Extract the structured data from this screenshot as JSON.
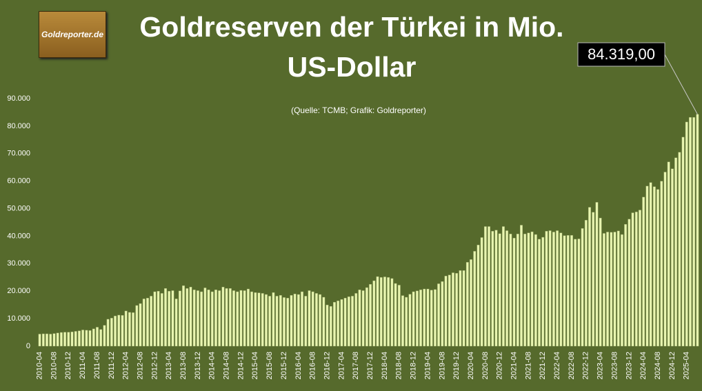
{
  "chart_data": {
    "type": "bar",
    "title": "Goldreserven der Türkei in Mio. US-Dollar",
    "logo": "Goldreporter.de",
    "source": "(Quelle: TCMB; Grafik: Goldreporter)",
    "annotation": "84.319,00",
    "color": "#e8f5b0",
    "ylim": [
      0,
      90000
    ],
    "yticks": [
      0,
      {
        "value": 10000,
        "label": "10.000"
      },
      {
        "value": 20000,
        "label": "20.000"
      },
      {
        "value": 30000,
        "label": "30.000"
      },
      {
        "value": 40000,
        "label": "40.000"
      },
      {
        "value": 50000,
        "label": "50.000"
      },
      {
        "value": 60000,
        "label": "60.000"
      },
      {
        "value": 70000,
        "label": "70.000"
      },
      {
        "value": 80000,
        "label": "80.000"
      },
      {
        "value": 90000,
        "label": "90.000"
      }
    ],
    "grid": false,
    "categories": [
      "2010-04",
      null,
      null,
      null,
      "2010-08",
      null,
      null,
      null,
      "2010-12",
      null,
      null,
      null,
      "2011-04",
      null,
      null,
      null,
      "2011-08",
      null,
      null,
      null,
      "2011-12",
      null,
      null,
      null,
      "2012-04",
      null,
      null,
      null,
      "2012-08",
      null,
      null,
      null,
      "2012-12",
      null,
      null,
      null,
      "2013-04",
      null,
      null,
      null,
      "2013-08",
      null,
      null,
      null,
      "2013-12",
      null,
      null,
      null,
      "2014-04",
      null,
      null,
      null,
      "2014-08",
      null,
      null,
      null,
      "2014-12",
      null,
      null,
      null,
      "2015-04",
      null,
      null,
      null,
      "2015-08",
      null,
      null,
      null,
      "2015-12",
      null,
      null,
      null,
      "2016-04",
      null,
      null,
      null,
      "2016-08",
      null,
      null,
      null,
      "2016-12",
      null,
      null,
      null,
      "2017-04",
      null,
      null,
      null,
      "2017-08",
      null,
      null,
      null,
      "2017-12",
      null,
      null,
      null,
      "2018-04",
      null,
      null,
      null,
      "2018-08",
      null,
      null,
      null,
      "2018-12",
      null,
      null,
      null,
      "2019-04",
      null,
      null,
      null,
      "2019-08",
      null,
      null,
      null,
      "2019-12",
      null,
      null,
      null,
      "2020-04",
      null,
      null,
      null,
      "2020-08",
      null,
      null,
      null,
      "2020-12",
      null,
      null,
      null,
      "2021-04",
      null,
      null,
      null,
      "2021-08",
      null,
      null,
      null,
      "2021-12",
      null,
      null,
      null,
      "2022-04",
      null,
      null,
      null,
      "2022-08",
      null,
      null,
      null,
      "2022-12",
      null,
      null,
      null,
      "2023-04",
      null,
      null,
      null,
      "2023-08",
      null,
      null,
      null,
      "2023-12",
      null,
      null,
      null,
      "2024-04",
      null,
      null,
      null,
      "2024-08",
      null,
      null,
      null,
      "2024-12",
      null,
      null,
      null,
      "2025-04",
      null,
      null,
      null
    ],
    "values": [
      4400,
      4500,
      4500,
      4400,
      4600,
      4800,
      5000,
      5100,
      5100,
      5200,
      5400,
      5600,
      5900,
      5800,
      5700,
      6300,
      6900,
      6100,
      7600,
      9800,
      10200,
      11000,
      11300,
      11200,
      12800,
      12300,
      12200,
      14800,
      15500,
      17200,
      17500,
      18200,
      19800,
      20000,
      19200,
      21000,
      20000,
      20200,
      17200,
      20100,
      22000,
      21000,
      21500,
      20500,
      20200,
      19800,
      21200,
      20500,
      19800,
      20500,
      20200,
      21500,
      21000,
      21000,
      20200,
      19800,
      20300,
      20200,
      20800,
      19800,
      19500,
      19400,
      19200,
      18800,
      18200,
      19500,
      18200,
      18500,
      17700,
      17500,
      18500,
      19000,
      18800,
      19800,
      18200,
      20200,
      19800,
      19200,
      18800,
      17800,
      15000,
      14500,
      16000,
      16500,
      17000,
      17500,
      18000,
      18200,
      19200,
      20500,
      20200,
      21300,
      22500,
      23800,
      25300,
      25000,
      25200,
      25000,
      24600,
      22800,
      22200,
      18400,
      17800,
      18900,
      19800,
      20100,
      20500,
      20800,
      20800,
      20400,
      20600,
      22700,
      23500,
      25500,
      25900,
      26700,
      26500,
      27500,
      27500,
      30500,
      31500,
      34500,
      36800,
      39500,
      43500,
      43500,
      41800,
      42200,
      40900,
      43500,
      42000,
      40800,
      39300,
      40800,
      44000,
      40800,
      41200,
      41600,
      40600,
      38900,
      39600,
      41800,
      42000,
      41500,
      42000,
      41200,
      40200,
      40300,
      40300,
      38900,
      39000,
      42800,
      45800,
      50500,
      48700,
      52300,
      46600,
      41000,
      41500,
      41400,
      41500,
      41900,
      40600,
      44300,
      46200,
      48500,
      48800,
      49500,
      54200,
      58200,
      59500,
      58000,
      57000,
      60000,
      63300,
      67000,
      64500,
      68500,
      70500,
      76000,
      81500,
      83200,
      83200,
      84319
    ]
  }
}
